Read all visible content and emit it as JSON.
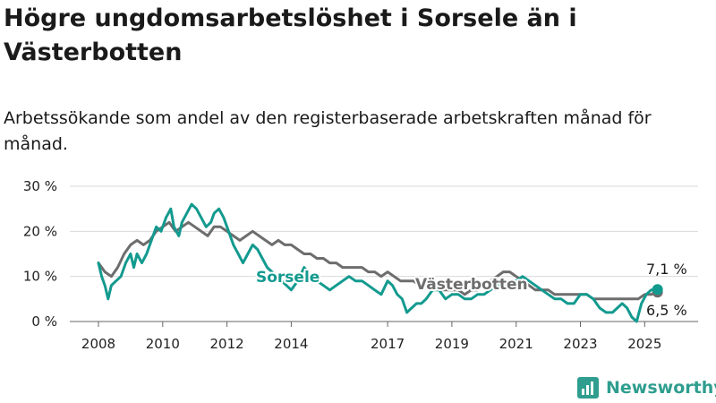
{
  "title": "Högre ungdomsarbetslöshet i Sorsele än i Västerbotten",
  "subtitle": "Arbetssökande som andel av den registerbaserade arbetskraften månad för månad.",
  "brand": {
    "name": "Newsworthy",
    "icon": "newsworthy-logo-icon",
    "color": "#2f9e8f"
  },
  "chart_data": {
    "type": "line",
    "title": "Högre ungdomsarbetslöshet i Sorsele än i Västerbotten",
    "subtitle": "Arbetssökande som andel av den registerbaserade arbetskraften månad för månad.",
    "xlabel": "",
    "ylabel": "",
    "xlim": [
      2007.5,
      2025.8
    ],
    "ylim": [
      0,
      30
    ],
    "x_ticks": [
      2008,
      2010,
      2012,
      2014,
      2017,
      2019,
      2021,
      2023,
      2025
    ],
    "y_ticks": [
      0,
      10,
      20,
      30
    ],
    "y_tick_labels": [
      "0 %",
      "10 %",
      "20 %",
      "30 %"
    ],
    "grid": true,
    "legend": "inline labels",
    "series": [
      {
        "name": "Sorsele",
        "color": "#139a8f",
        "x": [
          2008.0,
          2008.1,
          2008.2,
          2008.3,
          2008.4,
          2008.55,
          2008.7,
          2008.85,
          2009.0,
          2009.1,
          2009.2,
          2009.35,
          2009.5,
          2009.65,
          2009.8,
          2009.95,
          2010.1,
          2010.25,
          2010.35,
          2010.5,
          2010.6,
          2010.75,
          2010.9,
          2011.05,
          2011.2,
          2011.35,
          2011.5,
          2011.6,
          2011.75,
          2011.9,
          2012.05,
          2012.2,
          2012.35,
          2012.5,
          2012.65,
          2012.8,
          2012.95,
          2013.1,
          2013.25,
          2013.4,
          2013.55,
          2013.7,
          2013.85,
          2014.0,
          2014.2,
          2014.4,
          2014.6,
          2014.8,
          2015.0,
          2015.2,
          2015.4,
          2015.6,
          2015.8,
          2016.0,
          2016.2,
          2016.4,
          2016.6,
          2016.8,
          2017.0,
          2017.15,
          2017.3,
          2017.45,
          2017.6,
          2017.75,
          2017.9,
          2018.05,
          2018.2,
          2018.4,
          2018.6,
          2018.8,
          2019.0,
          2019.2,
          2019.4,
          2019.6,
          2019.8,
          2020.0,
          2020.2,
          2020.4,
          2020.6,
          2020.8,
          2021.0,
          2021.2,
          2021.4,
          2021.6,
          2021.8,
          2022.0,
          2022.2,
          2022.4,
          2022.6,
          2022.8,
          2023.0,
          2023.2,
          2023.4,
          2023.6,
          2023.8,
          2024.0,
          2024.15,
          2024.3,
          2024.45,
          2024.6,
          2024.75,
          2024.9,
          2025.05,
          2025.2,
          2025.4
        ],
        "values": [
          13,
          10,
          8,
          5,
          8,
          9,
          10,
          13,
          15,
          12,
          15,
          13,
          15,
          18,
          21,
          20,
          23,
          25,
          21,
          19,
          22,
          24,
          26,
          25,
          23,
          21,
          22,
          24,
          25,
          23,
          20,
          17,
          15,
          13,
          15,
          17,
          16,
          14,
          12,
          11,
          10,
          9,
          8,
          7,
          9,
          12,
          10,
          9,
          8,
          7,
          8,
          9,
          10,
          9,
          9,
          8,
          7,
          6,
          9,
          8,
          6,
          5,
          2,
          3,
          4,
          4,
          5,
          7,
          7,
          5,
          6,
          6,
          5,
          5,
          6,
          6,
          7,
          8,
          8,
          9,
          9,
          10,
          9,
          8,
          7,
          6,
          5,
          5,
          4,
          4,
          6,
          6,
          5,
          3,
          2,
          2,
          3,
          4,
          3,
          1,
          0,
          4,
          6,
          7,
          7.1
        ],
        "end_label": "7,1 %"
      },
      {
        "name": "Västerbotten",
        "color": "#6d6d6d",
        "x": [
          2008.0,
          2008.2,
          2008.4,
          2008.6,
          2008.8,
          2009.0,
          2009.2,
          2009.4,
          2009.6,
          2009.8,
          2010.0,
          2010.2,
          2010.4,
          2010.6,
          2010.8,
          2011.0,
          2011.2,
          2011.4,
          2011.6,
          2011.8,
          2012.0,
          2012.2,
          2012.4,
          2012.6,
          2012.8,
          2013.0,
          2013.2,
          2013.4,
          2013.6,
          2013.8,
          2014.0,
          2014.2,
          2014.4,
          2014.6,
          2014.8,
          2015.0,
          2015.2,
          2015.4,
          2015.6,
          2015.8,
          2016.0,
          2016.2,
          2016.4,
          2016.6,
          2016.8,
          2017.0,
          2017.2,
          2017.4,
          2017.6,
          2017.8,
          2018.0,
          2018.2,
          2018.4,
          2018.6,
          2018.8,
          2019.0,
          2019.2,
          2019.4,
          2019.6,
          2019.8,
          2020.0,
          2020.2,
          2020.4,
          2020.6,
          2020.8,
          2021.0,
          2021.2,
          2021.4,
          2021.6,
          2021.8,
          2022.0,
          2022.2,
          2022.4,
          2022.6,
          2022.8,
          2023.0,
          2023.2,
          2023.4,
          2023.6,
          2023.8,
          2024.0,
          2024.2,
          2024.4,
          2024.6,
          2024.8,
          2025.0,
          2025.2,
          2025.4
        ],
        "values": [
          13,
          11,
          10,
          12,
          15,
          17,
          18,
          17,
          18,
          20,
          21,
          22,
          20,
          21,
          22,
          21,
          20,
          19,
          21,
          21,
          20,
          19,
          18,
          19,
          20,
          19,
          18,
          17,
          18,
          17,
          17,
          16,
          15,
          15,
          14,
          14,
          13,
          13,
          12,
          12,
          12,
          12,
          11,
          11,
          10,
          11,
          10,
          9,
          9,
          9,
          8,
          8,
          8,
          7,
          7,
          7,
          7,
          6,
          7,
          7,
          8,
          9,
          10,
          11,
          11,
          10,
          9,
          8,
          7,
          7,
          7,
          6,
          6,
          6,
          6,
          6,
          6,
          5,
          5,
          5,
          5,
          5,
          5,
          5,
          5,
          6,
          6,
          6.5
        ],
        "end_label": "6,5 %"
      }
    ]
  }
}
